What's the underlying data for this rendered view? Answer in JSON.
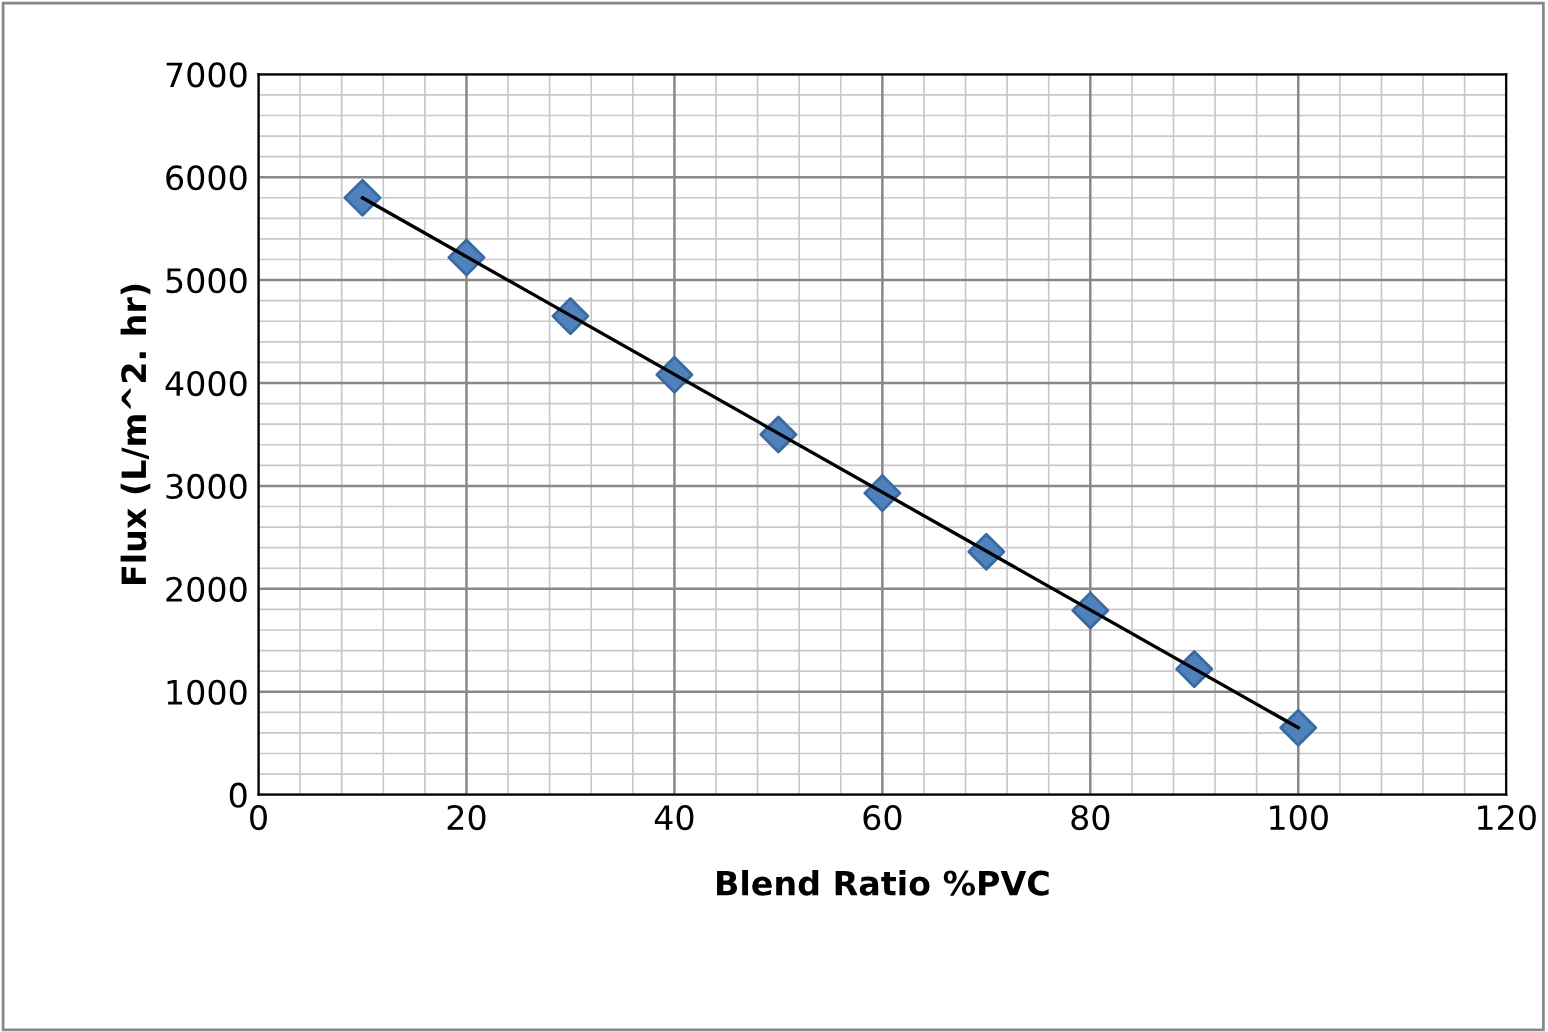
{
  "chart_data": {
    "type": "scatter",
    "xlabel": "Blend Ratio %PVC",
    "ylabel": "Flux (L/m^2. hr)",
    "xlim": [
      0,
      120
    ],
    "xticks": [
      0,
      20,
      40,
      60,
      80,
      100,
      120
    ],
    "ylim": [
      0,
      7000
    ],
    "yticks": [
      0,
      1000,
      2000,
      3000,
      4000,
      5000,
      6000,
      7000
    ],
    "grid": true,
    "legend": false,
    "series": [
      {
        "color": "#4f81bd",
        "marker": "diamond",
        "x": [
          10,
          20,
          30,
          40,
          50,
          60,
          70,
          80,
          90,
          100
        ],
        "values": [
          5800,
          5220,
          4650,
          4080,
          3500,
          2930,
          2360,
          1790,
          1220,
          650
        ]
      },
      {
        "type": "line",
        "color": "#000000",
        "line_style": "solid",
        "marker": "none",
        "x": [
          10,
          100
        ],
        "values": [
          5800,
          650
        ]
      }
    ]
  }
}
